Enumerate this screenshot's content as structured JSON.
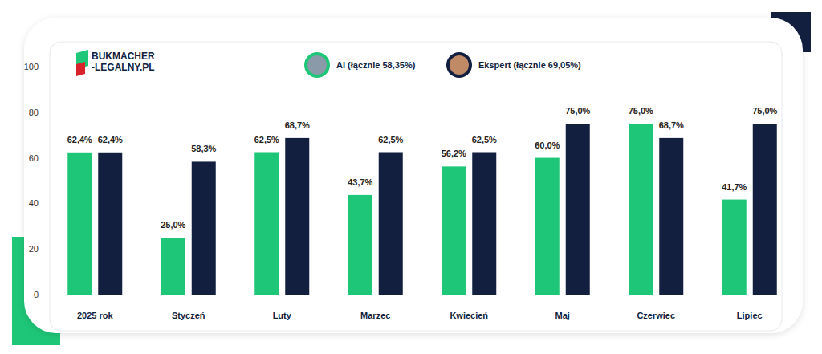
{
  "chart_data": {
    "type": "bar",
    "logo": [
      "BUKMACHER",
      "-LEGALNY.PL"
    ],
    "categories": [
      "2025 rok",
      "Styczeń",
      "Luty",
      "Marzec",
      "Kwiecień",
      "Maj",
      "Czerwiec",
      "Lipiec"
    ],
    "series": [
      {
        "name": "AI (łącznie 58,35%)",
        "color": "#1ec677",
        "values": [
          62.4,
          25.0,
          62.5,
          43.7,
          56.2,
          60.0,
          75.0,
          41.7
        ],
        "value_labels": [
          "62,4%",
          "25,0%",
          "62,5%",
          "43,7%",
          "56,2%",
          "60,0%",
          "75,0%",
          "41,7%"
        ]
      },
      {
        "name": "Ekspert (łącznie 69,05%)",
        "color": "#121f3f",
        "values": [
          62.4,
          58.3,
          68.7,
          62.5,
          62.5,
          75.0,
          68.7,
          75.0
        ],
        "value_labels": [
          "62,4%",
          "58,3%",
          "68,7%",
          "62,5%",
          "62,5%",
          "75,0%",
          "68,7%",
          "75,0%"
        ]
      }
    ],
    "ylim": [
      0,
      100
    ],
    "yticks": [
      0,
      20,
      40,
      60,
      80,
      100
    ],
    "grid": false,
    "legend": "top",
    "data_labels": true
  }
}
